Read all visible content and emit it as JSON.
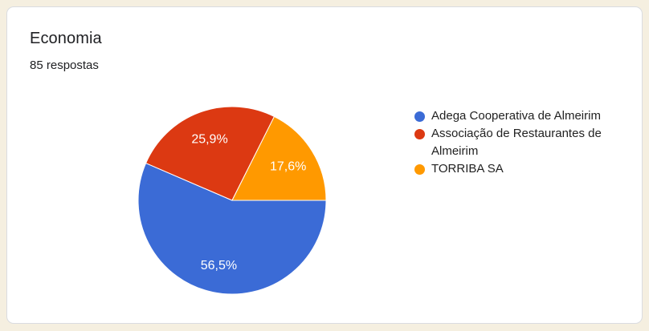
{
  "card": {
    "title": "Economia",
    "subtitle": "85 respostas"
  },
  "chart_data": {
    "type": "pie",
    "title": "Economia",
    "responses_count": 85,
    "start_angle_deg": 90,
    "direction": "clockwise",
    "legend_position": "right",
    "slices": [
      {
        "label": "Adega Cooperativa de Almeirim",
        "value": 56.5,
        "display": "56,5%",
        "color": "#3B6BD6"
      },
      {
        "label": "Associação de Restaurantes de Almeirim",
        "value": 25.9,
        "display": "25,9%",
        "color": "#DC3912"
      },
      {
        "label": "TORRIBA SA",
        "value": 17.6,
        "display": "17,6%",
        "color": "#FF9900"
      }
    ]
  },
  "colors": {
    "page_background": "#F5EFE0",
    "card_background": "#FFFFFF",
    "card_border": "#DADCE0",
    "heading_text": "#202124",
    "legend_text": "#222222",
    "slice_label_text": "#FFFFFF",
    "slice_border": "#FFFFFF"
  }
}
